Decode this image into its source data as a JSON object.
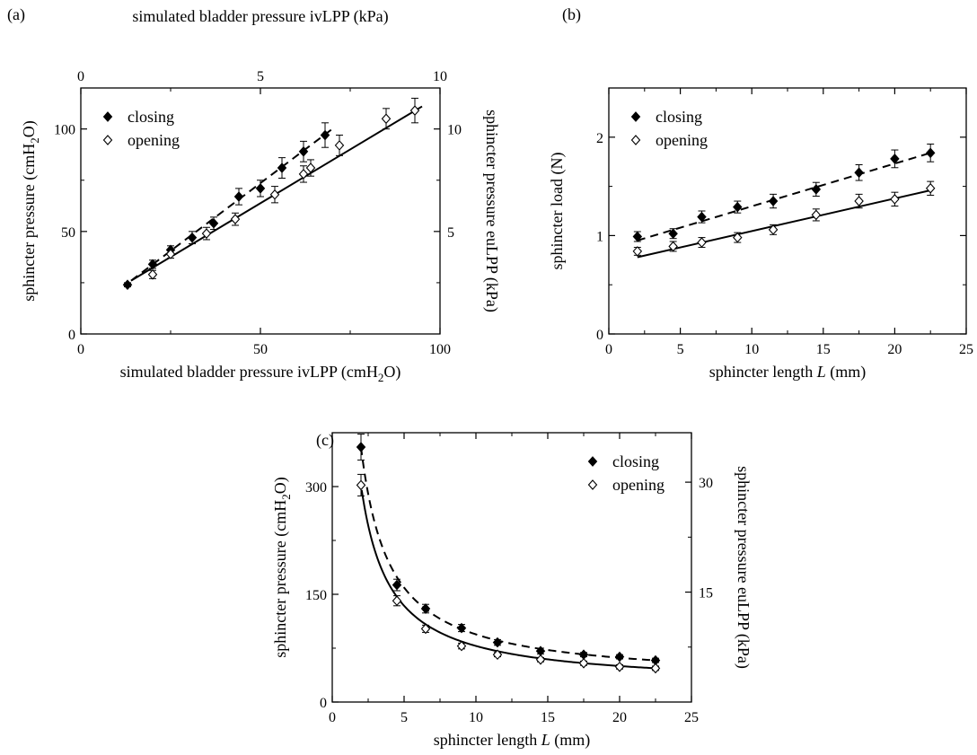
{
  "chart_data": [
    {
      "panel": "(a)",
      "type": "scatter",
      "xlabel": "simulated bladder pressure ivLPP (cmH2O)",
      "ylabel": "sphincter pressure (cmH2O)",
      "x2label": "simulated bladder pressure ivLPP (kPa)",
      "y2label": "sphincter pressure euLPP (kPa)",
      "xlim": [
        0,
        100
      ],
      "ylim": [
        0,
        120
      ],
      "x2lim": [
        0,
        10
      ],
      "y2lim": [
        0,
        12
      ],
      "xticks": [
        "0",
        "50",
        "100"
      ],
      "yticks": [
        "0",
        "50",
        "100"
      ],
      "x2ticks": [
        "0",
        "5",
        "10"
      ],
      "y2ticks": [
        "5",
        "10"
      ],
      "legend_position": "top-left",
      "series": [
        {
          "name": "closing",
          "marker": "filled-diamond",
          "x": [
            13,
            20,
            25,
            31,
            37,
            44,
            50,
            56,
            62,
            68
          ],
          "y": [
            24,
            34,
            41,
            47,
            54,
            67,
            71,
            81,
            89,
            97
          ],
          "err": [
            1,
            2,
            2,
            3,
            3,
            4,
            4,
            5,
            5,
            6
          ],
          "fit": {
            "style": "dashed",
            "x": [
              14,
              70
            ],
            "y": [
              26,
              100
            ]
          }
        },
        {
          "name": "opening",
          "marker": "open-diamond",
          "x": [
            20,
            25,
            35,
            43,
            54,
            62,
            64,
            72,
            85,
            93
          ],
          "y": [
            29,
            39,
            49,
            56,
            68,
            78,
            81,
            92,
            105,
            109
          ],
          "err": [
            2,
            2,
            3,
            3,
            4,
            4,
            4,
            5,
            5,
            6
          ],
          "fit": {
            "style": "solid",
            "x": [
              14,
              95
            ],
            "y": [
              26,
              111
            ]
          }
        }
      ]
    },
    {
      "panel": "(b)",
      "type": "scatter",
      "xlabel": "sphincter length L (mm)",
      "ylabel": "sphincter load (N)",
      "xlim": [
        0,
        25
      ],
      "ylim": [
        0,
        2.5
      ],
      "xticks": [
        "0",
        "5",
        "10",
        "15",
        "20",
        "25"
      ],
      "yticks": [
        "0",
        "1",
        "2"
      ],
      "legend_position": "top-left",
      "series": [
        {
          "name": "closing",
          "marker": "filled-diamond",
          "x": [
            2,
            4.5,
            6.5,
            9,
            11.5,
            14.5,
            17.5,
            20,
            22.5
          ],
          "y": [
            0.99,
            1.02,
            1.19,
            1.29,
            1.35,
            1.47,
            1.64,
            1.78,
            1.84
          ],
          "err": [
            0.05,
            0.05,
            0.06,
            0.06,
            0.07,
            0.07,
            0.08,
            0.09,
            0.09
          ],
          "fit": {
            "style": "dashed",
            "x": [
              2,
              22.5
            ],
            "y": [
              0.95,
              1.84
            ]
          }
        },
        {
          "name": "opening",
          "marker": "open-diamond",
          "x": [
            2,
            4.5,
            6.5,
            9,
            11.5,
            14.5,
            17.5,
            20,
            22.5
          ],
          "y": [
            0.84,
            0.89,
            0.93,
            0.98,
            1.06,
            1.21,
            1.35,
            1.37,
            1.48
          ],
          "err": [
            0.04,
            0.05,
            0.05,
            0.05,
            0.05,
            0.06,
            0.07,
            0.07,
            0.07
          ],
          "fit": {
            "style": "solid",
            "x": [
              2,
              22.5
            ],
            "y": [
              0.78,
              1.46
            ]
          }
        }
      ]
    },
    {
      "panel": "(c)",
      "type": "scatter",
      "xlabel": "sphincter length L (mm)",
      "ylabel": "sphincter pressure (cmH2O)",
      "y2label": "sphincter pressure euLPP (kPa)",
      "xlim": [
        0,
        25
      ],
      "ylim": [
        0,
        375
      ],
      "y2lim": [
        0,
        36.75
      ],
      "xticks": [
        "0",
        "5",
        "10",
        "15",
        "20",
        "25"
      ],
      "yticks": [
        "0",
        "150",
        "300"
      ],
      "y2ticks": [
        "15",
        "30"
      ],
      "legend_position": "top-right",
      "series": [
        {
          "name": "closing",
          "marker": "filled-diamond",
          "x": [
            2,
            4.5,
            6.5,
            9,
            11.5,
            14.5,
            17.5,
            20,
            22.5
          ],
          "y": [
            355,
            163,
            130,
            103,
            83,
            71,
            66,
            63,
            58
          ],
          "err": [
            18,
            8,
            6,
            5,
            4,
            4,
            3,
            3,
            3
          ],
          "fit": {
            "style": "dashed",
            "a": 32.5,
            "b": 43,
            "range": [
              2,
              22.5
            ]
          }
        },
        {
          "name": "opening",
          "marker": "open-diamond",
          "x": [
            2,
            4.5,
            6.5,
            9,
            11.5,
            14.5,
            17.5,
            20,
            22.5
          ],
          "y": [
            302,
            141,
            102,
            78,
            66,
            59,
            54,
            49,
            47
          ],
          "err": [
            15,
            7,
            5,
            4,
            3,
            3,
            3,
            3,
            3
          ],
          "fit": {
            "style": "solid",
            "a": 29.5,
            "b": 33,
            "range": [
              2.05,
              22.5
            ]
          }
        }
      ]
    }
  ]
}
